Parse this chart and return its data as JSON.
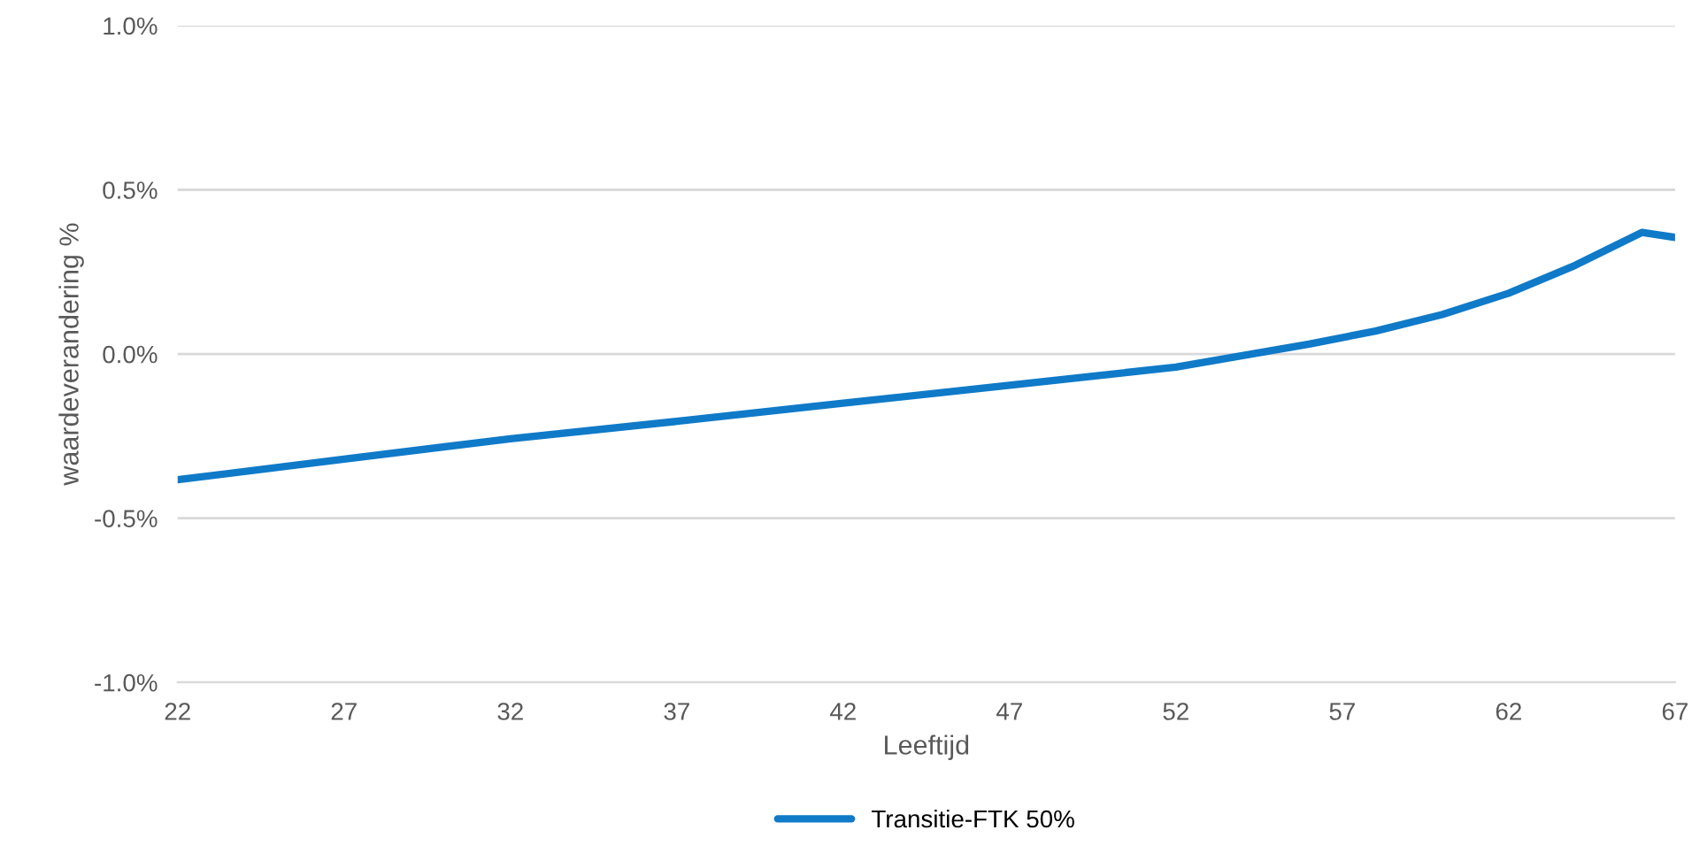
{
  "chart_data": {
    "type": "line",
    "xlabel": "Leeftijd",
    "ylabel": "waardeverandering %",
    "x": [
      22,
      27,
      32,
      37,
      42,
      47,
      50,
      52,
      54,
      56,
      58,
      60,
      62,
      64,
      66,
      67
    ],
    "series": [
      {
        "name": "Transitie-FTK 50%",
        "color": "#0f7ac8",
        "values": [
          -0.383,
          -0.32,
          -0.258,
          -0.205,
          -0.15,
          -0.095,
          -0.062,
          -0.04,
          -0.005,
          0.03,
          0.07,
          0.12,
          0.185,
          0.27,
          0.37,
          0.355
        ]
      }
    ],
    "xlim": [
      22,
      67
    ],
    "xticks": [
      22,
      27,
      32,
      37,
      42,
      47,
      52,
      57,
      62,
      67
    ],
    "ylim": [
      -1.0,
      1.0
    ],
    "yticks": [
      {
        "value": -1.0,
        "label": "-1.0%"
      },
      {
        "value": -0.5,
        "label": "-0.5%"
      },
      {
        "value": 0.0,
        "label": "0.0%"
      },
      {
        "value": 0.5,
        "label": "0.5%"
      },
      {
        "value": 1.0,
        "label": "1.0%"
      }
    ],
    "grid": "y",
    "legend": "bottom",
    "marker": "none",
    "line_style": "solid"
  }
}
